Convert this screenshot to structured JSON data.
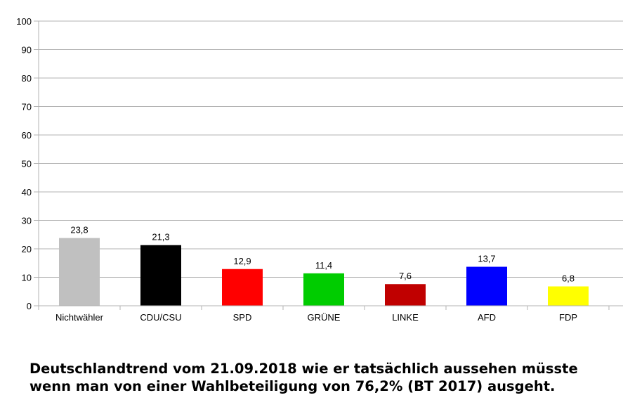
{
  "chart_data": {
    "type": "bar",
    "categories": [
      "Nichtwähler",
      "CDU/CSU",
      "SPD",
      "GRÜNE",
      "LINKE",
      "AFD",
      "FDP"
    ],
    "values": [
      23.8,
      21.3,
      12.9,
      11.4,
      7.6,
      13.7,
      6.8
    ],
    "data_labels": [
      "23,8",
      "21,3",
      "12,9",
      "11,4",
      "7,6",
      "13,7",
      "6,8"
    ],
    "colors": [
      "#c0c0c0",
      "#000000",
      "#ff0000",
      "#00cc00",
      "#c00000",
      "#0000ff",
      "#ffff00"
    ],
    "ylim": [
      0,
      100
    ],
    "yticks": [
      0,
      10,
      20,
      30,
      40,
      50,
      60,
      70,
      80,
      90,
      100
    ],
    "ytick_labels": [
      "0",
      "10",
      "20",
      "30",
      "40",
      "50",
      "60",
      "70",
      "80",
      "90",
      "100"
    ],
    "grid": true,
    "legend": "none",
    "xlabel": "",
    "ylabel": ""
  },
  "caption": {
    "line1": "Deutschlandtrend vom 21.09.2018 wie er tatsächlich aussehen müsste",
    "line2": "wenn man von einer Wahlbeteiligung von 76,2% (BT 2017) ausgeht."
  }
}
